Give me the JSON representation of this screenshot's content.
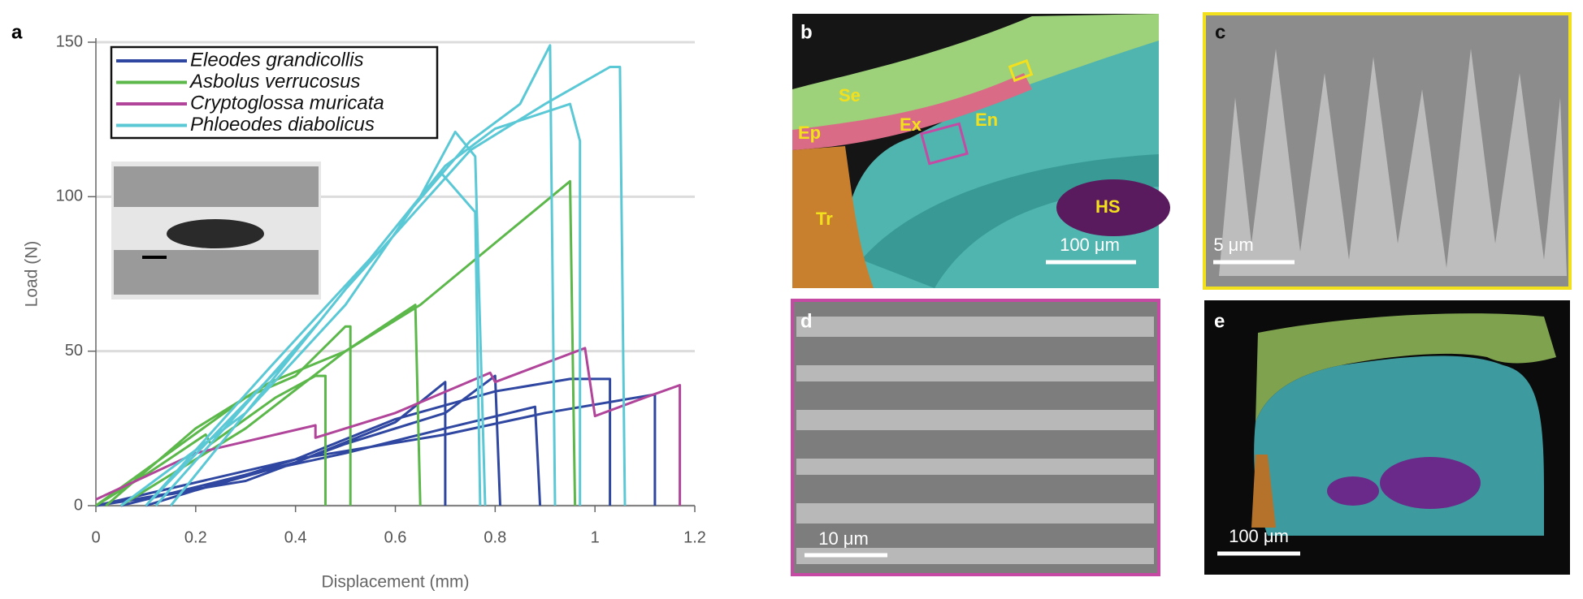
{
  "chart_data": {
    "type": "line",
    "panel_label": "a",
    "x_label": "Displacement (mm)",
    "y_label": "Load (N)",
    "xlim": [
      0,
      1.2
    ],
    "xticks": [
      0,
      0.2,
      0.4,
      0.6,
      0.8,
      1,
      1.2
    ],
    "ylim": [
      0,
      150
    ],
    "yticks": [
      0,
      50,
      100,
      150
    ],
    "grid": true,
    "legend": "upper left",
    "series": [
      {
        "name": "Eleodes grandicollis",
        "color": "#2f47a0",
        "x": [
          0,
          0.2,
          0.4,
          0.6,
          0.7,
          0.7,
          null,
          0,
          0.3,
          0.5,
          0.7,
          0.8,
          0.81,
          null,
          0.05,
          0.3,
          0.5,
          0.7,
          0.88,
          0.89,
          null,
          0,
          0.4,
          0.6,
          0.8,
          0.95,
          1.03,
          1.03,
          null,
          0.1,
          0.4,
          0.7,
          0.9,
          1.12,
          1.12
        ],
        "values": [
          0,
          5,
          14,
          27,
          40,
          0,
          null,
          0,
          8,
          20,
          30,
          42,
          0,
          null,
          0,
          10,
          17,
          25,
          32,
          0,
          null,
          0,
          15,
          28,
          37,
          41,
          41,
          0,
          null,
          0,
          15,
          23,
          30,
          36,
          0
        ]
      },
      {
        "name": "Asbolus verrucosus",
        "color": "#5cb84a",
        "x": [
          0,
          0.1,
          0.22,
          0.23,
          0.36,
          0.44,
          0.46,
          0.46,
          null,
          0,
          0.3,
          0.4,
          0.5,
          0.51,
          0.51,
          null,
          0.02,
          0.2,
          0.35,
          0.5,
          0.64,
          0.65,
          null,
          0.05,
          0.3,
          0.5,
          0.65,
          0.8,
          0.95,
          0.96
        ],
        "values": [
          0,
          10,
          23,
          20,
          35,
          42,
          42,
          0,
          null,
          0,
          35,
          42,
          58,
          58,
          0,
          null,
          0,
          25,
          40,
          50,
          65,
          0,
          null,
          0,
          25,
          50,
          65,
          85,
          105,
          0
        ]
      },
      {
        "name": "Cryptoglossa muricata",
        "color": "#b0459a",
        "x": [
          0,
          0.2,
          0.44,
          0.44,
          0.6,
          0.79,
          0.8,
          0.98,
          1.0,
          1.1,
          1.17,
          1.17
        ],
        "values": [
          2,
          17,
          26,
          22,
          30,
          43,
          40,
          51,
          29,
          35,
          39,
          0
        ]
      },
      {
        "name": "Phloeodes diabolicus",
        "color": "#5bc8d6",
        "x": [
          0.05,
          0.3,
          0.5,
          0.65,
          0.72,
          0.76,
          0.78,
          null,
          0.1,
          0.35,
          0.55,
          0.69,
          0.76,
          0.77,
          null,
          0.1,
          0.4,
          0.6,
          0.75,
          0.85,
          0.91,
          0.92,
          null,
          0.12,
          0.45,
          0.7,
          0.8,
          0.95,
          0.97,
          0.97,
          null,
          0.15,
          0.5,
          0.75,
          0.9,
          1.03,
          1.05,
          1.06
        ],
        "values": [
          0,
          30,
          65,
          100,
          121,
          113,
          0,
          null,
          0,
          45,
          80,
          108,
          95,
          0,
          null,
          0,
          50,
          90,
          118,
          130,
          149,
          0,
          null,
          0,
          60,
          110,
          122,
          130,
          118,
          0,
          null,
          0,
          70,
          115,
          130,
          142,
          142,
          0
        ]
      }
    ]
  },
  "panels": [
    {
      "label": "b",
      "annotations": [
        "Se",
        "Ep",
        "Ex",
        "En",
        "Tr",
        "HS"
      ],
      "scale_bar": "100 μm"
    },
    {
      "label": "c",
      "scale_bar": "5 μm"
    },
    {
      "label": "d",
      "scale_bar": "10 μm"
    },
    {
      "label": "e",
      "scale_bar": "100 μm"
    }
  ]
}
